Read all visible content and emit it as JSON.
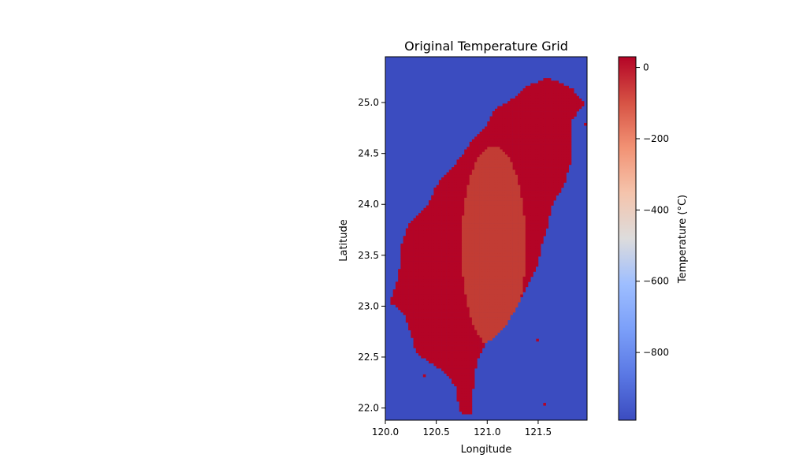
{
  "chart_data": {
    "type": "heatmap",
    "title": "Original Temperature Grid",
    "xlabel": "Longitude",
    "ylabel": "Latitude",
    "xlim": [
      120.0,
      121.98
    ],
    "ylim": [
      21.88,
      25.45
    ],
    "x_ticks": [
      "120.0",
      "120.5",
      "121.0",
      "121.5"
    ],
    "y_ticks": [
      "22.0",
      "22.5",
      "23.0",
      "23.5",
      "24.0",
      "24.5",
      "25.0"
    ],
    "colorbar": {
      "label": "Temperature (°C)",
      "range": [
        -990,
        30
      ],
      "ticks": [
        "0",
        "−200",
        "−400",
        "−600",
        "−800"
      ],
      "colormap": "coolwarm"
    },
    "background_value": -999,
    "land_value_range": [
      18,
      28
    ],
    "land_outline": {
      "west": [
        [
          25.24,
          121.55
        ],
        [
          25.16,
          121.36
        ],
        [
          25.05,
          121.25
        ],
        [
          24.95,
          121.08
        ],
        [
          24.8,
          121.0
        ],
        [
          24.6,
          120.82
        ],
        [
          24.45,
          120.72
        ],
        [
          24.2,
          120.5
        ],
        [
          24.0,
          120.42
        ],
        [
          23.8,
          120.22
        ],
        [
          23.6,
          120.15
        ],
        [
          23.4,
          120.14
        ],
        [
          23.2,
          120.1
        ],
        [
          23.05,
          120.04
        ],
        [
          22.95,
          120.18
        ],
        [
          22.75,
          120.25
        ],
        [
          22.55,
          120.3
        ],
        [
          22.35,
          120.6
        ],
        [
          22.2,
          120.7
        ],
        [
          22.0,
          120.72
        ],
        [
          21.95,
          120.75
        ]
      ],
      "east": [
        [
          25.24,
          121.62
        ],
        [
          25.15,
          121.82
        ],
        [
          25.0,
          121.94
        ],
        [
          24.85,
          121.82
        ],
        [
          24.6,
          121.82
        ],
        [
          24.4,
          121.8
        ],
        [
          24.2,
          121.74
        ],
        [
          24.0,
          121.62
        ],
        [
          23.8,
          121.58
        ],
        [
          23.6,
          121.52
        ],
        [
          23.4,
          121.48
        ],
        [
          23.2,
          121.38
        ],
        [
          23.0,
          121.28
        ],
        [
          22.8,
          121.15
        ],
        [
          22.65,
          120.98
        ],
        [
          22.45,
          120.88
        ],
        [
          22.3,
          120.86
        ],
        [
          22.1,
          120.84
        ],
        [
          21.95,
          120.84
        ]
      ]
    },
    "highland_peak": {
      "lat": 23.6,
      "lon": 121.05,
      "value": 16
    },
    "islands": [
      {
        "lat": 24.8,
        "lon": 121.95
      },
      {
        "lat": 22.68,
        "lon": 121.48
      },
      {
        "lat": 22.33,
        "lon": 120.37
      },
      {
        "lat": 22.05,
        "lon": 121.55
      }
    ]
  },
  "colors": {
    "sea": "#3b4cc0",
    "land": "#b40426",
    "highland": "#c23c34"
  }
}
